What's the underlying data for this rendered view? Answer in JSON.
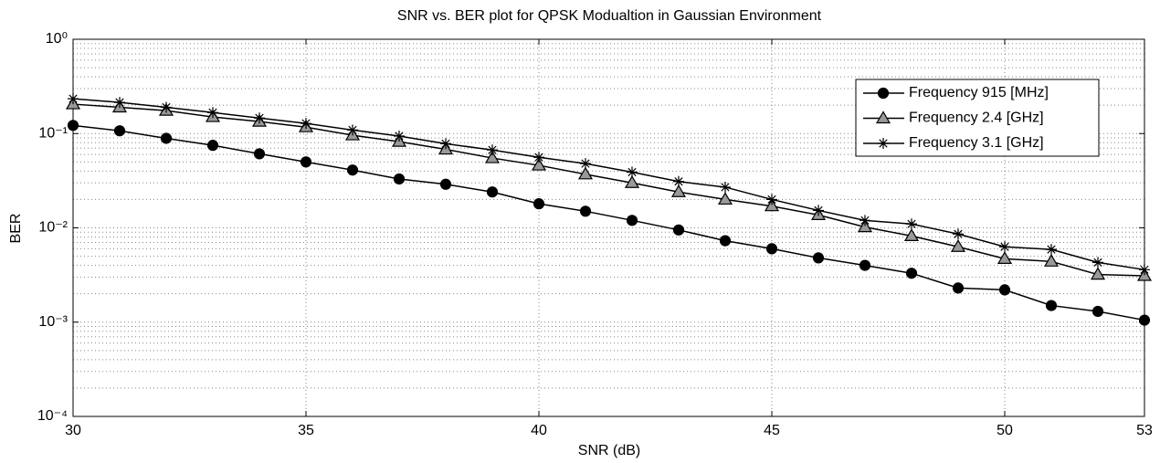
{
  "chart_data": {
    "type": "line",
    "title": "SNR vs. BER plot for QPSK Modualtion in Gaussian Environment",
    "xlabel": "SNR (dB)",
    "ylabel": "BER",
    "x": [
      30,
      31,
      32,
      33,
      34,
      35,
      36,
      37,
      38,
      39,
      40,
      41,
      42,
      43,
      44,
      45,
      46,
      47,
      48,
      49,
      50,
      51,
      52,
      53
    ],
    "series": [
      {
        "name": "Frequency 915 [MHz]",
        "color": "#000000",
        "marker": "circle",
        "marker_fill": "#000000",
        "values": [
          0.122,
          0.107,
          0.089,
          0.075,
          0.061,
          0.05,
          0.041,
          0.033,
          0.029,
          0.024,
          0.018,
          0.015,
          0.012,
          0.0095,
          0.0073,
          0.006,
          0.0048,
          0.004,
          0.0033,
          0.0023,
          0.0022,
          0.0015,
          0.0013,
          0.00105
        ]
      },
      {
        "name": "Frequency 2.4 [GHz]",
        "color": "#000000",
        "marker": "triangle",
        "marker_fill": "#999999",
        "values": [
          0.205,
          0.19,
          0.175,
          0.15,
          0.134,
          0.117,
          0.096,
          0.082,
          0.068,
          0.055,
          0.046,
          0.037,
          0.03,
          0.024,
          0.02,
          0.017,
          0.0137,
          0.0102,
          0.0082,
          0.0063,
          0.0047,
          0.0044,
          0.0032,
          0.0031
        ]
      },
      {
        "name": "Frequency 3.1 [GHz]",
        "color": "#000000",
        "marker": "asterisk",
        "marker_fill": "#000000",
        "values": [
          0.234,
          0.214,
          0.19,
          0.167,
          0.146,
          0.128,
          0.109,
          0.094,
          0.078,
          0.067,
          0.056,
          0.048,
          0.039,
          0.031,
          0.027,
          0.02,
          0.0153,
          0.012,
          0.011,
          0.0086,
          0.0063,
          0.0059,
          0.0043,
          0.0036
        ]
      }
    ],
    "xlim": [
      30,
      53
    ],
    "xticks": [
      30,
      35,
      40,
      45,
      50,
      53
    ],
    "ylim": [
      0.0001,
      1
    ],
    "ylog": true,
    "yticks": [
      {
        "value": 0.0001,
        "label": "10⁻⁴"
      },
      {
        "value": 0.001,
        "label": "10⁻³"
      },
      {
        "value": 0.01,
        "label": "10⁻²"
      },
      {
        "value": 0.1,
        "label": "10⁻¹"
      },
      {
        "value": 1,
        "label": "10⁰"
      }
    ],
    "grid": true,
    "minor_grid": true,
    "legend": "upper right"
  }
}
